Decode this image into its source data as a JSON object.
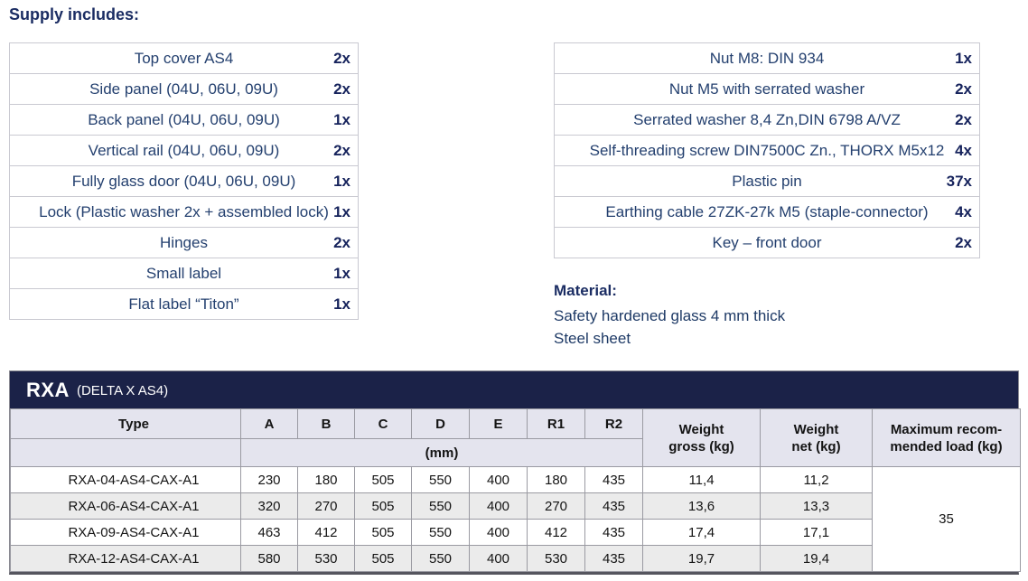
{
  "supply_heading": "Supply includes:",
  "supply_left": [
    {
      "item": "Top cover AS4",
      "qty": "2x"
    },
    {
      "item": "Side panel (04U, 06U, 09U)",
      "qty": "2x"
    },
    {
      "item": "Back panel (04U, 06U, 09U)",
      "qty": "1x"
    },
    {
      "item": "Vertical rail (04U, 06U, 09U)",
      "qty": "2x"
    },
    {
      "item": "Fully glass door (04U, 06U, 09U)",
      "qty": "1x"
    },
    {
      "item": "Lock (Plastic washer 2x + assembled lock)",
      "qty": "1x"
    },
    {
      "item": "Hinges",
      "qty": "2x"
    },
    {
      "item": "Small label",
      "qty": "1x"
    },
    {
      "item": "Flat label “Titon”",
      "qty": "1x"
    }
  ],
  "supply_right": [
    {
      "item": "Nut M8: DIN 934",
      "qty": "1x"
    },
    {
      "item": "Nut M5 with serrated washer",
      "qty": "2x"
    },
    {
      "item": "Serrated washer 8,4 Zn,DIN 6798 A/VZ",
      "qty": "2x"
    },
    {
      "item": "Self-threading screw DIN7500C Zn., THORX M5x12",
      "qty": "4x"
    },
    {
      "item": "Plastic pin",
      "qty": "37x"
    },
    {
      "item": "Earthing cable 27ZK-27k M5 (staple-connector)",
      "qty": "4x"
    },
    {
      "item": "Key – front door",
      "qty": "2x"
    }
  ],
  "material": {
    "heading": "Material:",
    "line1": "Safety hardened glass 4 mm thick",
    "line2": "Steel sheet"
  },
  "spec_table": {
    "series": "RXA",
    "series_subtitle": "(DELTA X AS4)",
    "type_header": "Type",
    "dim_headers": [
      "A",
      "B",
      "C",
      "D",
      "E",
      "R1",
      "R2"
    ],
    "unit_header": "(mm)",
    "weight_gross_header": "Weight\ngross (kg)",
    "weight_net_header": "Weight\nnet (kg)",
    "max_load_header": "Maximum recom-\nmended load (kg)",
    "rows": [
      {
        "type": "RXA-04-AS4-CAX-A1",
        "dims": [
          "230",
          "180",
          "505",
          "550",
          "400",
          "180",
          "435"
        ],
        "weight_gross": "11,4",
        "weight_net": "11,2"
      },
      {
        "type": "RXA-06-AS4-CAX-A1",
        "dims": [
          "320",
          "270",
          "505",
          "550",
          "400",
          "270",
          "435"
        ],
        "weight_gross": "13,6",
        "weight_net": "13,3"
      },
      {
        "type": "RXA-09-AS4-CAX-A1",
        "dims": [
          "463",
          "412",
          "505",
          "550",
          "400",
          "412",
          "435"
        ],
        "weight_gross": "17,4",
        "weight_net": "17,1"
      },
      {
        "type": "RXA-12-AS4-CAX-A1",
        "dims": [
          "580",
          "530",
          "505",
          "550",
          "400",
          "530",
          "435"
        ],
        "weight_gross": "19,7",
        "weight_net": "19,4"
      }
    ],
    "max_load_value": "35"
  }
}
